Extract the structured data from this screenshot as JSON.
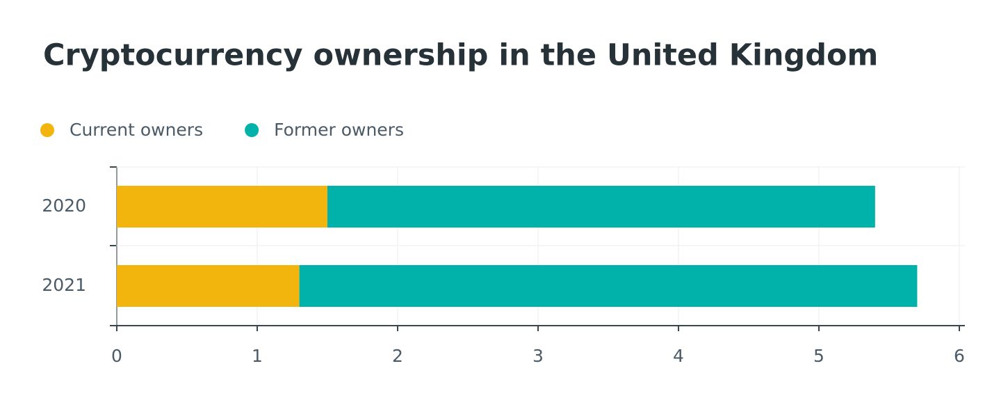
{
  "chart_data": {
    "type": "bar",
    "orientation": "horizontal",
    "stacked": true,
    "title": "Cryptocurrency ownership in the United Kingdom",
    "categories": [
      "2020",
      "2021"
    ],
    "series": [
      {
        "name": "Current owners",
        "color": "#f2b50d",
        "values": [
          1.5,
          1.3
        ]
      },
      {
        "name": "Former owners",
        "color": "#00b2a9",
        "values": [
          3.9,
          4.4
        ]
      }
    ],
    "xlim": [
      0,
      6
    ],
    "xticks": [
      0,
      1,
      2,
      3,
      4,
      5,
      6
    ],
    "grid": true,
    "legend": "top-left"
  }
}
